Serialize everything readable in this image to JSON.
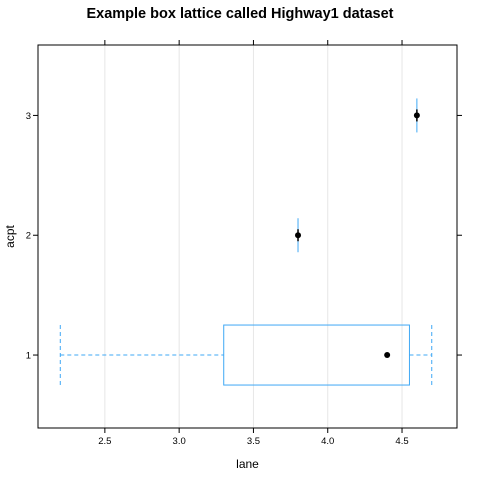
{
  "chart_data": {
    "type": "box",
    "orientation": "horizontal",
    "title": "Example box lattice called Highway1 dataset",
    "xlabel": "lane",
    "ylabel": "acpt",
    "xlim": [
      2.05,
      4.87
    ],
    "x_ticks": [
      "2.5",
      "3.0",
      "3.5",
      "4.0",
      "4.5"
    ],
    "x_tick_values": [
      2.5,
      3.0,
      3.5,
      4.0,
      4.5
    ],
    "y_categories": [
      "1",
      "2",
      "3"
    ],
    "grid": "vertical",
    "box_color": "#3fa8f5",
    "median_color": "#000000",
    "boxes": [
      {
        "category": "1",
        "whisker_low": 2.2,
        "q1": 3.3,
        "median": 4.4,
        "q3": 4.55,
        "whisker_high": 4.7
      },
      {
        "category": "2",
        "whisker_low": 3.8,
        "q1": 3.8,
        "median": 3.8,
        "q3": 3.8,
        "whisker_high": 3.8
      },
      {
        "category": "3",
        "whisker_low": 4.6,
        "q1": 4.6,
        "median": 4.6,
        "q3": 4.6,
        "whisker_high": 4.6
      }
    ]
  }
}
